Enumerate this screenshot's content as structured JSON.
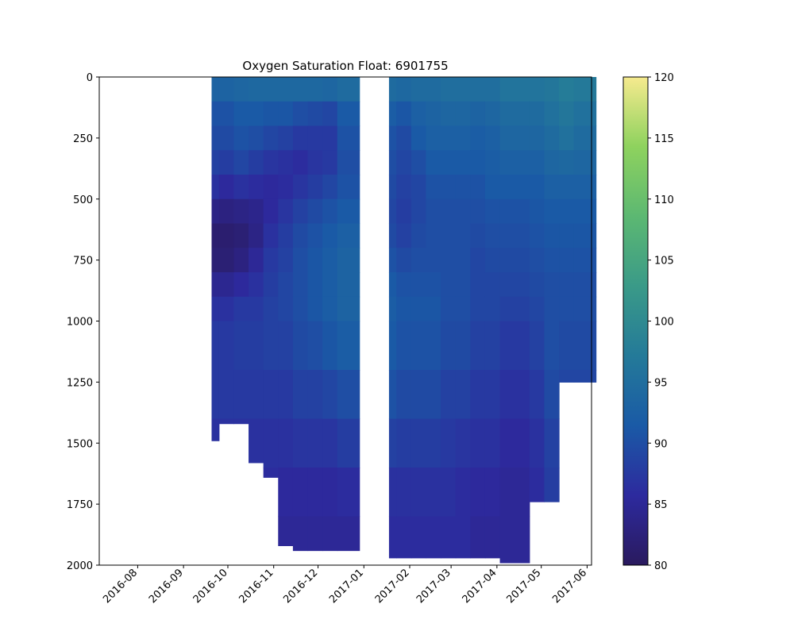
{
  "chart_data": {
    "type": "heatmap",
    "title": "Oxygen Saturation Float: 6901755",
    "xlabel": "",
    "ylabel": "",
    "y_inverted": true,
    "ylim": [
      2000,
      0
    ],
    "xlim": [
      "2016-07-06",
      "2017-06-04"
    ],
    "x_ticks": [
      {
        "date": "2016-08-01",
        "label": "2016-08"
      },
      {
        "date": "2016-09-01",
        "label": "2016-09"
      },
      {
        "date": "2016-10-01",
        "label": "2016-10"
      },
      {
        "date": "2016-11-01",
        "label": "2016-11"
      },
      {
        "date": "2016-12-01",
        "label": "2016-12"
      },
      {
        "date": "2017-01-01",
        "label": "2017-01"
      },
      {
        "date": "2017-02-01",
        "label": "2017-02"
      },
      {
        "date": "2017-03-01",
        "label": "2017-03"
      },
      {
        "date": "2017-04-01",
        "label": "2017-04"
      },
      {
        "date": "2017-05-01",
        "label": "2017-05"
      },
      {
        "date": "2017-06-01",
        "label": "2017-06"
      }
    ],
    "y_ticks": [
      0,
      250,
      500,
      750,
      1000,
      1250,
      1500,
      1750,
      2000
    ],
    "colorbar": {
      "range": [
        80,
        120
      ],
      "ticks": [
        80,
        85,
        90,
        95,
        100,
        105,
        110,
        115,
        120
      ],
      "colormap": "summer-like",
      "stops": [
        "#2a1a5e",
        "#2d2a9e",
        "#1a5aa6",
        "#247a99",
        "#3a9a88",
        "#5cb872",
        "#8ed25e",
        "#f6ea8e"
      ]
    },
    "depth_levels": [
      0,
      100,
      200,
      300,
      400,
      500,
      600,
      700,
      800,
      900,
      1000,
      1200,
      1400,
      1600,
      1800,
      2000
    ],
    "profiles": [
      {
        "date": "2016-09-20",
        "max_depth": 1490,
        "values": [
          95,
          91,
          90,
          89,
          88,
          85,
          82,
          81,
          83,
          86,
          87,
          88,
          87,
          86,
          86,
          86
        ]
      },
      {
        "date": "2016-09-30",
        "max_depth": 1420,
        "values": [
          95,
          91,
          90,
          89,
          87,
          84,
          82,
          81,
          83,
          86,
          87,
          88,
          87,
          86,
          86,
          86
        ]
      },
      {
        "date": "2016-10-10",
        "max_depth": 1420,
        "values": [
          95,
          92,
          91,
          90,
          88,
          85,
          82,
          82,
          84,
          87,
          88,
          88,
          87,
          86,
          86,
          86
        ]
      },
      {
        "date": "2016-10-20",
        "max_depth": 1580,
        "values": [
          96,
          92,
          91,
          89,
          87,
          85,
          83,
          84,
          86,
          87,
          88,
          88,
          87,
          86,
          86,
          86
        ]
      },
      {
        "date": "2016-10-30",
        "max_depth": 1640,
        "values": [
          96,
          92,
          90,
          88,
          86,
          85,
          86,
          87,
          88,
          88,
          89,
          88,
          87,
          86,
          86,
          86
        ]
      },
      {
        "date": "2016-11-09",
        "max_depth": 1920,
        "values": [
          96,
          92,
          90,
          87,
          86,
          86,
          88,
          88,
          89,
          89,
          89,
          88,
          87,
          86,
          85,
          85
        ]
      },
      {
        "date": "2016-11-19",
        "max_depth": 1940,
        "values": [
          97,
          91,
          89,
          86,
          86,
          88,
          89,
          90,
          90,
          90,
          90,
          89,
          88,
          86,
          85,
          85
        ]
      },
      {
        "date": "2016-11-29",
        "max_depth": 1940,
        "values": [
          97,
          91,
          88,
          87,
          87,
          89,
          90,
          91,
          91,
          91,
          91,
          89,
          88,
          86,
          85,
          85
        ]
      },
      {
        "date": "2016-12-09",
        "max_depth": 1940,
        "values": [
          97,
          90,
          88,
          87,
          88,
          90,
          91,
          92,
          92,
          92,
          92,
          90,
          88,
          86,
          85,
          85
        ]
      },
      {
        "date": "2016-12-19",
        "max_depth": 1940,
        "values": [
          97,
          92,
          91,
          90,
          90,
          91,
          92,
          93,
          93,
          93,
          93,
          91,
          89,
          87,
          85,
          85
        ]
      },
      {
        "date": "2017-01-18",
        "max_depth": 1970,
        "values": [
          96,
          93,
          91,
          90,
          90,
          89,
          89,
          90,
          91,
          92,
          92,
          91,
          90,
          87,
          86,
          86
        ]
      },
      {
        "date": "2017-01-28",
        "max_depth": 1970,
        "values": [
          96,
          92,
          90,
          89,
          89,
          88,
          88,
          89,
          90,
          91,
          91,
          90,
          89,
          87,
          86,
          86
        ]
      },
      {
        "date": "2017-02-07",
        "max_depth": 1970,
        "values": [
          96,
          93,
          92,
          91,
          89,
          89,
          89,
          90,
          90,
          91,
          91,
          90,
          89,
          87,
          86,
          86
        ]
      },
      {
        "date": "2017-02-17",
        "max_depth": 1970,
        "values": [
          96,
          93,
          93,
          92,
          91,
          90,
          90,
          90,
          90,
          91,
          91,
          90,
          89,
          87,
          86,
          86
        ]
      },
      {
        "date": "2017-02-27",
        "max_depth": 1970,
        "values": [
          96,
          94,
          93,
          92,
          91,
          90,
          90,
          90,
          90,
          90,
          90,
          89,
          88,
          87,
          86,
          86
        ]
      },
      {
        "date": "2017-03-09",
        "max_depth": 1970,
        "values": [
          96,
          94,
          93,
          92,
          91,
          90,
          90,
          90,
          90,
          90,
          90,
          89,
          88,
          86,
          86,
          86
        ]
      },
      {
        "date": "2017-03-19",
        "max_depth": 1970,
        "values": [
          96,
          94,
          92,
          92,
          91,
          90,
          90,
          89,
          89,
          89,
          89,
          88,
          87,
          86,
          85,
          85
        ]
      },
      {
        "date": "2017-03-29",
        "max_depth": 1970,
        "values": [
          96,
          94,
          93,
          92,
          92,
          91,
          90,
          90,
          89,
          89,
          89,
          88,
          87,
          86,
          85,
          85
        ]
      },
      {
        "date": "2017-04-08",
        "max_depth": 1990,
        "values": [
          97,
          95,
          94,
          93,
          92,
          91,
          90,
          90,
          89,
          89,
          88,
          87,
          86,
          85,
          85,
          85
        ]
      },
      {
        "date": "2017-04-18",
        "max_depth": 1990,
        "values": [
          97,
          95,
          94,
          93,
          92,
          91,
          90,
          90,
          89,
          89,
          88,
          87,
          86,
          85,
          85,
          85
        ]
      },
      {
        "date": "2017-04-28",
        "max_depth": 1740,
        "values": [
          97,
          95,
          94,
          93,
          92,
          91,
          91,
          90,
          90,
          89,
          89,
          88,
          87,
          86,
          86,
          86
        ]
      },
      {
        "date": "2017-05-08",
        "max_depth": 1740,
        "values": [
          97,
          96,
          95,
          94,
          93,
          92,
          91,
          91,
          90,
          90,
          90,
          90,
          89,
          88,
          88,
          88
        ]
      },
      {
        "date": "2017-05-18",
        "max_depth": 1250,
        "values": [
          98,
          97,
          96,
          95,
          93,
          92,
          91,
          91,
          90,
          90,
          90,
          89,
          89,
          89,
          89,
          89
        ]
      },
      {
        "date": "2017-05-28",
        "max_depth": 1250,
        "values": [
          98,
          96,
          95,
          94,
          93,
          92,
          91,
          91,
          90,
          90,
          90,
          89,
          89,
          89,
          89,
          89
        ]
      }
    ]
  }
}
